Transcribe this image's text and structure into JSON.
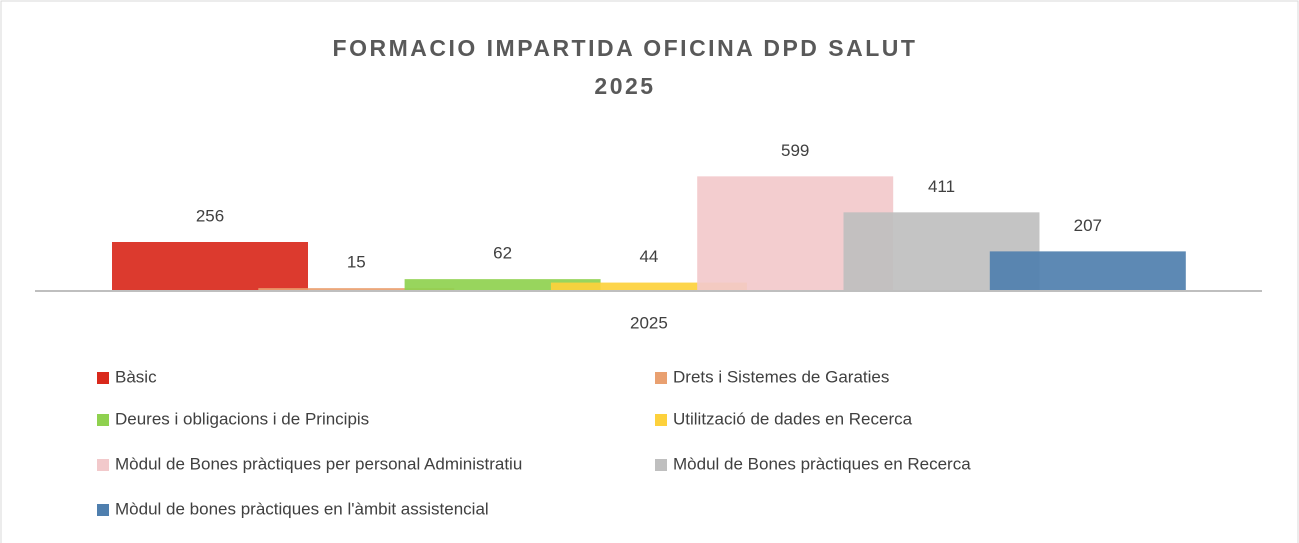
{
  "chart_data": {
    "type": "bar",
    "title": [
      "FORMACIO IMPARTIDA OFICINA DPD SALUT",
      "2025"
    ],
    "categories": [
      "2025"
    ],
    "series": [
      {
        "name": "Bàsic",
        "color": "#d9291c",
        "values": [
          256
        ]
      },
      {
        "name": "Drets i Sistemes de Garaties",
        "color": "#e9a070",
        "values": [
          15
        ]
      },
      {
        "name": "Deures i obligacions i de Principis",
        "color": "#8fd14f",
        "values": [
          62
        ]
      },
      {
        "name": "Utilització de dades en Recerca",
        "color": "#fdd13c",
        "values": [
          44
        ]
      },
      {
        "name": "Mòdul de Bones pràctiques per personal Administratiu",
        "color": "#f2c9cb",
        "values": [
          599
        ]
      },
      {
        "name": "Mòdul de Bones pràctiques en Recerca",
        "color": "#bfbfbf",
        "values": [
          411
        ]
      },
      {
        "name": "Mòdul de bones pràctiques en l'àmbit assistencial",
        "color": "#4f7fae",
        "values": [
          207
        ]
      }
    ],
    "legend": "bottom"
  }
}
